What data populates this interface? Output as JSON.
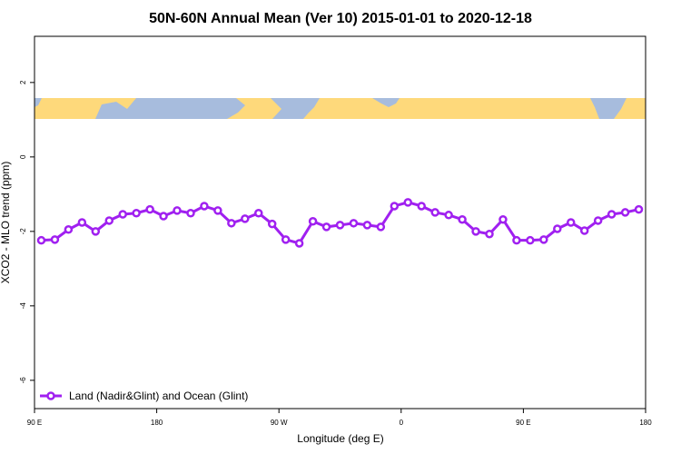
{
  "chart_data": {
    "type": "line",
    "title": "50N-60N Annual Mean (Ver 10)   2015-01-01 to 2020-12-18",
    "x_label": "Longitude (deg E)",
    "y_label": "XCO2 - MLO trend (ppm)",
    "x": [
      95,
      105,
      115,
      125,
      135,
      145,
      155,
      165,
      175,
      185,
      195,
      205,
      215,
      225,
      235,
      245,
      255,
      265,
      275,
      285,
      295,
      305,
      315,
      325,
      335,
      345,
      355,
      365,
      375,
      385,
      395,
      405,
      415,
      425,
      435,
      445,
      455,
      465,
      475,
      485,
      495,
      505,
      515,
      525,
      535
    ],
    "series": [
      {
        "name": "Land (Nadir&Glint) and Ocean (Glint)",
        "color": "#a020f0",
        "values": [
          -2.24,
          -2.22,
          -1.95,
          -1.76,
          -2.0,
          -1.71,
          -1.54,
          -1.51,
          -1.41,
          -1.59,
          -1.44,
          -1.51,
          -1.32,
          -1.44,
          -1.78,
          -1.66,
          -1.51,
          -1.8,
          -2.22,
          -2.32,
          -1.73,
          -1.88,
          -1.83,
          -1.78,
          -1.83,
          -1.88,
          -1.32,
          -1.22,
          -1.32,
          -1.49,
          -1.56,
          -1.68,
          -2.0,
          -2.07,
          -1.68,
          -2.24,
          -2.24,
          -2.22,
          -1.93,
          -1.76,
          -1.98,
          -1.71,
          -1.54,
          -1.49,
          -1.41
        ]
      }
    ],
    "xlim": [
      90,
      540
    ],
    "xticks": [
      {
        "value": 90,
        "label": "90 E"
      },
      180,
      {
        "value": 270,
        "label": "90 W"
      },
      {
        "value": 360,
        "label": "0"
      },
      {
        "value": 450,
        "label": "90 E"
      },
      {
        "value": 540,
        "label": "180"
      }
    ],
    "ylim": [
      -6.76,
      3.24
    ],
    "yticks": [
      -6,
      -4,
      -2,
      0,
      2
    ],
    "grid": false,
    "legend": "bottom-left"
  }
}
